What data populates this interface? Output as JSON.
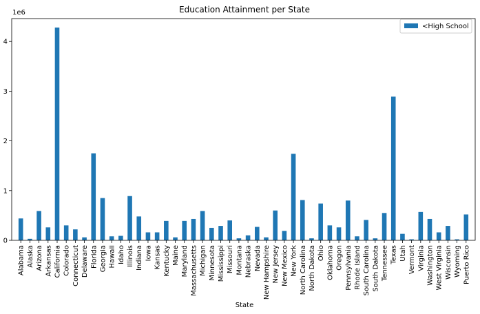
{
  "chart_data": {
    "type": "bar",
    "title": "Education Attainment per State",
    "xlabel": "State",
    "ylabel": "",
    "y_scale_label": "1e6",
    "ylim": [
      0,
      4460000
    ],
    "y_ticks": [
      0,
      1000000,
      2000000,
      3000000,
      4000000
    ],
    "y_tick_labels": [
      "0",
      "1",
      "2",
      "3",
      "4"
    ],
    "grid": false,
    "legend_position": "top-right",
    "bar_color": "#1f77b4",
    "categories": [
      "Alabama",
      "Alaska",
      "Arizona",
      "Arkansas",
      "California",
      "Colorado",
      "Connecticut",
      "Delaware",
      "Florida",
      "Georgia",
      "Hawaii",
      "Idaho",
      "Illinois",
      "Indiana",
      "Iowa",
      "Kansas",
      "Kentucky",
      "Maine",
      "Maryland",
      "Massachusetts",
      "Michigan",
      "Minnesota",
      "Mississippi",
      "Missouri",
      "Montana",
      "Nebraska",
      "Nevada",
      "New Hampshire",
      "New Jersey",
      "New Mexico",
      "New York",
      "North Carolina",
      "North Dakota",
      "Ohio",
      "Oklahoma",
      "Oregon",
      "Pennsylvania",
      "Rhode Island",
      "South Carolina",
      "South Dakota",
      "Tennessee",
      "Texas",
      "Utah",
      "Vermont",
      "Virginia",
      "Washington",
      "West Virginia",
      "Wisconsin",
      "Wyoming",
      "Puerto Rico"
    ],
    "series": [
      {
        "name": "<High School",
        "values": [
          440000,
          30000,
          590000,
          260000,
          4280000,
          300000,
          220000,
          60000,
          1750000,
          850000,
          80000,
          90000,
          890000,
          480000,
          160000,
          160000,
          390000,
          60000,
          390000,
          430000,
          590000,
          250000,
          290000,
          400000,
          40000,
          100000,
          270000,
          60000,
          600000,
          190000,
          1740000,
          810000,
          40000,
          740000,
          300000,
          260000,
          800000,
          80000,
          410000,
          40000,
          550000,
          2890000,
          130000,
          20000,
          570000,
          430000,
          160000,
          290000,
          20000,
          520000
        ]
      }
    ]
  }
}
